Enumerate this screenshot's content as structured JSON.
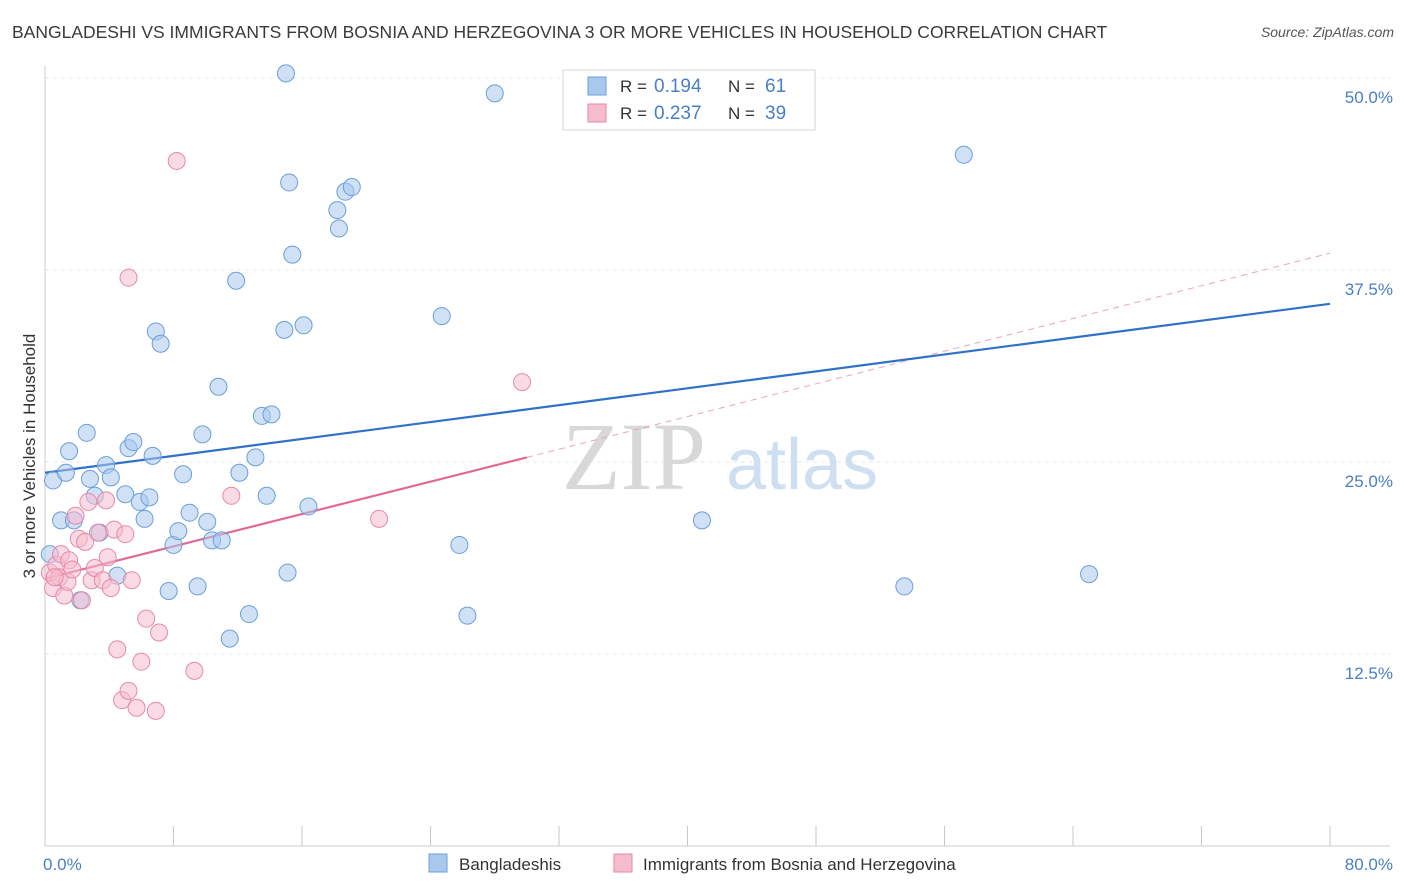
{
  "chart_data": {
    "type": "scatter",
    "title": "BANGLADESHI VS IMMIGRANTS FROM BOSNIA AND HERZEGOVINA 3 OR MORE VEHICLES IN HOUSEHOLD CORRELATION CHART",
    "source": "Source: ZipAtlas.com",
    "xlabel": "",
    "ylabel": "3 or more Vehicles in Household",
    "xlim": [
      0,
      80
    ],
    "ylim": [
      0,
      50
    ],
    "x_tick_labels": [
      "0.0%",
      "80.0%"
    ],
    "y_ticks": [
      12.5,
      25.0,
      37.5,
      50.0
    ],
    "y_tick_labels": [
      "12.5%",
      "25.0%",
      "37.5%",
      "50.0%"
    ],
    "watermark": "ZIPatlas",
    "legend": {
      "position": "top-center",
      "entries": [
        {
          "r_label": "R =",
          "r_value": "0.194",
          "n_label": "N =",
          "n_value": "61"
        },
        {
          "r_label": "R =",
          "r_value": "0.237",
          "n_label": "N =",
          "n_value": "39"
        }
      ]
    },
    "colors": {
      "blue_fill": "#a9c8ee",
      "blue_stroke": "#6a9fd8",
      "blue_line": "#2f72c8",
      "pink_fill": "#f5bccd",
      "pink_stroke": "#e68aa6",
      "pink_line": "#e06a92",
      "tick_text": "#4a7fc4"
    },
    "series": [
      {
        "name": "Bangladeshis",
        "trend": {
          "x0": 0,
          "y0": 24.3,
          "x1": 80,
          "y1": 35.3
        },
        "points": [
          [
            0.5,
            23.8
          ],
          [
            1.0,
            21.2
          ],
          [
            1.3,
            24.3
          ],
          [
            1.5,
            25.7
          ],
          [
            1.8,
            21.2
          ],
          [
            2.2,
            16.0
          ],
          [
            2.6,
            26.9
          ],
          [
            2.8,
            23.9
          ],
          [
            3.1,
            22.8
          ],
          [
            3.4,
            20.4
          ],
          [
            3.8,
            24.8
          ],
          [
            4.1,
            24.0
          ],
          [
            4.5,
            17.6
          ],
          [
            5.0,
            22.9
          ],
          [
            5.2,
            25.9
          ],
          [
            5.5,
            26.3
          ],
          [
            5.9,
            22.4
          ],
          [
            6.2,
            21.3
          ],
          [
            6.5,
            22.7
          ],
          [
            6.7,
            25.4
          ],
          [
            6.9,
            33.5
          ],
          [
            7.2,
            32.7
          ],
          [
            7.7,
            16.6
          ],
          [
            8.0,
            19.6
          ],
          [
            8.3,
            20.5
          ],
          [
            8.6,
            24.2
          ],
          [
            9.0,
            21.7
          ],
          [
            9.5,
            16.9
          ],
          [
            9.8,
            26.8
          ],
          [
            10.1,
            21.1
          ],
          [
            10.4,
            19.9
          ],
          [
            10.8,
            29.9
          ],
          [
            11.0,
            19.9
          ],
          [
            11.5,
            13.5
          ],
          [
            11.9,
            36.8
          ],
          [
            12.1,
            24.3
          ],
          [
            12.7,
            15.1
          ],
          [
            13.1,
            25.3
          ],
          [
            13.5,
            28.0
          ],
          [
            13.8,
            22.8
          ],
          [
            14.1,
            28.1
          ],
          [
            14.9,
            33.6
          ],
          [
            15.1,
            17.8
          ],
          [
            15.4,
            38.5
          ],
          [
            15.0,
            50.3
          ],
          [
            15.2,
            43.2
          ],
          [
            16.1,
            33.9
          ],
          [
            16.4,
            22.1
          ],
          [
            18.2,
            41.4
          ],
          [
            18.3,
            40.2
          ],
          [
            18.7,
            42.6
          ],
          [
            19.1,
            42.9
          ],
          [
            24.7,
            34.5
          ],
          [
            25.8,
            19.6
          ],
          [
            26.3,
            15.0
          ],
          [
            28.0,
            49.0
          ],
          [
            40.9,
            21.2
          ],
          [
            53.5,
            16.9
          ],
          [
            57.2,
            45.0
          ],
          [
            65.0,
            17.7
          ],
          [
            0.3,
            19.0
          ]
        ]
      },
      {
        "name": "Immigrants from Bosnia and Herzegovina",
        "trend": {
          "x0": 0,
          "y0": 17.4,
          "x1": 30,
          "y1": 25.3,
          "dash_x1": 80,
          "dash_y1": 38.6
        },
        "points": [
          [
            0.3,
            17.8
          ],
          [
            0.5,
            16.8
          ],
          [
            0.7,
            18.3
          ],
          [
            0.9,
            17.5
          ],
          [
            1.0,
            19.0
          ],
          [
            1.2,
            16.3
          ],
          [
            1.4,
            17.2
          ],
          [
            1.5,
            18.6
          ],
          [
            1.7,
            18.0
          ],
          [
            1.9,
            21.5
          ],
          [
            2.1,
            20.0
          ],
          [
            2.3,
            16.0
          ],
          [
            2.5,
            19.8
          ],
          [
            2.7,
            22.4
          ],
          [
            2.9,
            17.3
          ],
          [
            3.1,
            18.1
          ],
          [
            3.3,
            20.4
          ],
          [
            3.6,
            17.3
          ],
          [
            3.8,
            22.5
          ],
          [
            3.9,
            18.8
          ],
          [
            4.1,
            16.8
          ],
          [
            4.3,
            20.6
          ],
          [
            4.5,
            12.8
          ],
          [
            4.8,
            9.5
          ],
          [
            5.0,
            20.3
          ],
          [
            5.2,
            10.1
          ],
          [
            5.4,
            17.3
          ],
          [
            5.7,
            9.0
          ],
          [
            6.0,
            12.0
          ],
          [
            6.3,
            14.8
          ],
          [
            6.9,
            8.8
          ],
          [
            7.1,
            13.9
          ],
          [
            8.2,
            44.6
          ],
          [
            9.3,
            11.4
          ],
          [
            11.6,
            22.8
          ],
          [
            5.2,
            37.0
          ],
          [
            20.8,
            21.3
          ],
          [
            29.7,
            30.2
          ],
          [
            0.6,
            17.5
          ]
        ]
      }
    ]
  }
}
